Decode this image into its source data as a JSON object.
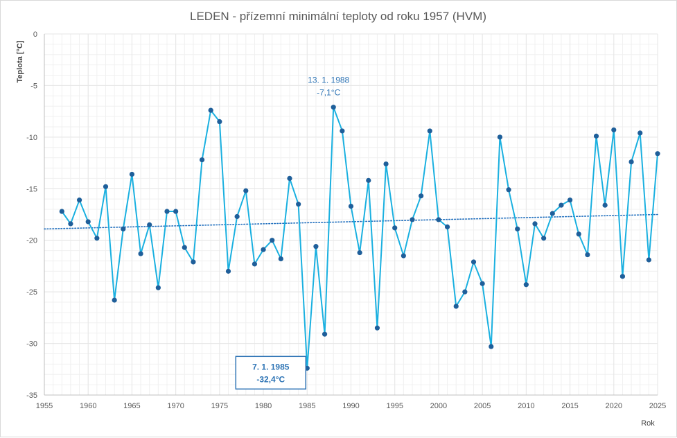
{
  "chart_data": {
    "type": "line",
    "title": "LEDEN - přízemní minimální teploty od roku 1957 (HVM)",
    "xlabel": "Rok",
    "ylabel": "Teplota [°C]",
    "xlim": [
      1955,
      2025
    ],
    "ylim": [
      -35,
      0
    ],
    "x_ticks": [
      1955,
      1960,
      1965,
      1970,
      1975,
      1980,
      1985,
      1990,
      1995,
      2000,
      2005,
      2010,
      2015,
      2020,
      2025
    ],
    "y_ticks": [
      0,
      -5,
      -10,
      -15,
      -20,
      -25,
      -30,
      -35
    ],
    "grid": true,
    "colors": {
      "series": "#1ab0e0",
      "markers": "#1f5f9a",
      "trend": "#1f6ebd",
      "annotation": "#2e74b5",
      "grid": "#e6e6e6"
    },
    "series": [
      {
        "x": [
          1957,
          1958,
          1959,
          1960,
          1961,
          1962,
          1963,
          1964,
          1965,
          1966,
          1967,
          1968,
          1969,
          1970,
          1971,
          1972,
          1973,
          1974,
          1975,
          1976,
          1977,
          1978,
          1979,
          1980,
          1981,
          1982,
          1983,
          1984,
          1985,
          1986,
          1987,
          1988,
          1989,
          1990,
          1991,
          1992,
          1993,
          1994,
          1995,
          1996,
          1997,
          1998,
          1999,
          2000,
          2001,
          2002,
          2003,
          2004,
          2005,
          2006,
          2007,
          2008,
          2009,
          2010,
          2011,
          2012,
          2013,
          2014,
          2015,
          2016,
          2017,
          2018,
          2019,
          2020,
          2021,
          2022,
          2023,
          2024,
          2025
        ],
        "values": [
          -17.2,
          -18.4,
          -16.1,
          -18.2,
          -19.8,
          -14.8,
          -25.8,
          -18.9,
          -13.6,
          -21.3,
          -18.5,
          -24.6,
          -17.2,
          -17.2,
          -20.7,
          -22.1,
          -12.2,
          -7.4,
          -8.5,
          -23.0,
          -17.7,
          -15.2,
          -22.3,
          -20.9,
          -20.0,
          -21.8,
          -14.0,
          -16.5,
          -32.4,
          -20.6,
          -29.1,
          -7.1,
          -9.4,
          -16.7,
          -21.2,
          -14.2,
          -28.5,
          -12.6,
          -18.8,
          -21.5,
          -18.0,
          -15.7,
          -9.4,
          -18.0,
          -18.7,
          -26.4,
          -25.0,
          -22.1,
          -24.2,
          -30.3,
          -10.0,
          -15.1,
          -18.9,
          -24.3,
          -18.4,
          -19.8,
          -17.4,
          -16.6,
          -16.1,
          -19.4,
          -21.4,
          -9.9,
          -16.6,
          -9.3,
          -23.5,
          -12.4,
          -9.6,
          -21.9,
          -11.6
        ]
      }
    ],
    "trendline": {
      "style": "dotted",
      "start": [
        1955,
        -18.9
      ],
      "end": [
        2025,
        -17.5
      ]
    },
    "annotations": [
      {
        "lines": [
          "13. 1. 1988",
          "-7,1°C"
        ],
        "x": 1988,
        "y": -7.1,
        "boxed": false
      },
      {
        "lines": [
          "7. 1. 1985",
          "-32,4°C"
        ],
        "x": 1985,
        "y": -32.4,
        "boxed": true
      }
    ]
  }
}
